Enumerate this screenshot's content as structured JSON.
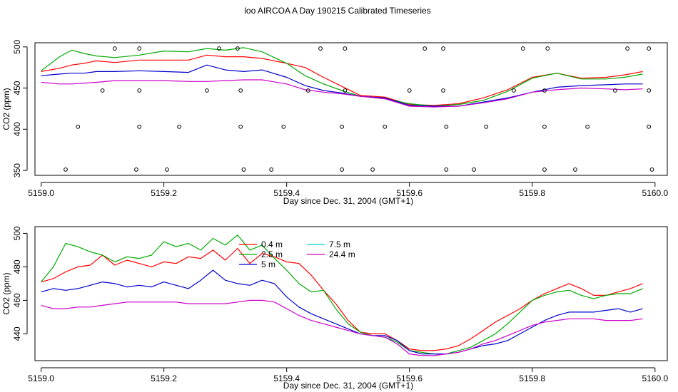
{
  "title": "loo AIRCOA A  Day 190215  Calibrated Timeseries",
  "chart_data": [
    {
      "type": "line",
      "panel": "top",
      "xlabel": "Day since Dec. 31, 2004 (GMT+1)",
      "ylabel": "CO2 (ppm)",
      "xlim": [
        5158.99,
        5160.02
      ],
      "ylim": [
        344,
        505
      ],
      "x_ticks": [
        5159.0,
        5159.2,
        5159.4,
        5159.6,
        5159.8,
        5160.0
      ],
      "x_tick_labels": [
        "5159.0",
        "5159.2",
        "5159.4",
        "5159.6",
        "5159.8",
        "5160.0"
      ],
      "y_ticks": [
        350,
        400,
        450,
        500
      ],
      "y_tick_labels": [
        "350",
        "400",
        "450",
        "500"
      ],
      "series": [
        {
          "key": "s04",
          "color": "#ff0000",
          "x": [
            5159.0,
            5159.03,
            5159.05,
            5159.07,
            5159.09,
            5159.12,
            5159.16,
            5159.2,
            5159.24,
            5159.27,
            5159.3,
            5159.33,
            5159.36,
            5159.4,
            5159.43,
            5159.46,
            5159.49,
            5159.52,
            5159.56,
            5159.6,
            5159.64,
            5159.68,
            5159.72,
            5159.76,
            5159.8,
            5159.84,
            5159.88,
            5159.92,
            5159.95,
            5159.98
          ],
          "y": [
            470,
            474,
            478,
            480,
            483,
            481,
            484,
            484,
            484,
            490,
            488,
            488,
            486,
            480,
            475,
            463,
            452,
            441,
            439,
            430,
            429,
            431,
            438,
            448,
            463,
            468,
            462,
            463,
            466,
            470
          ]
        },
        {
          "key": "s25",
          "color": "#00aa00",
          "x": [
            5159.0,
            5159.03,
            5159.05,
            5159.07,
            5159.09,
            5159.12,
            5159.16,
            5159.2,
            5159.24,
            5159.27,
            5159.3,
            5159.33,
            5159.36,
            5159.4,
            5159.43,
            5159.46,
            5159.49,
            5159.52,
            5159.56,
            5159.6,
            5159.64,
            5159.68,
            5159.72,
            5159.76,
            5159.8,
            5159.84,
            5159.88,
            5159.92,
            5159.95,
            5159.98
          ],
          "y": [
            471,
            488,
            496,
            492,
            489,
            487,
            490,
            495,
            494,
            498,
            496,
            499,
            494,
            480,
            465,
            455,
            447,
            440,
            437,
            431,
            428,
            430,
            435,
            446,
            462,
            468,
            461,
            461,
            463,
            467
          ]
        },
        {
          "key": "s5",
          "color": "#0000cc",
          "x": [
            5159.0,
            5159.03,
            5159.05,
            5159.07,
            5159.09,
            5159.12,
            5159.16,
            5159.2,
            5159.24,
            5159.27,
            5159.3,
            5159.33,
            5159.36,
            5159.4,
            5159.43,
            5159.46,
            5159.49,
            5159.52,
            5159.56,
            5159.6,
            5159.64,
            5159.68,
            5159.72,
            5159.76,
            5159.8,
            5159.84,
            5159.88,
            5159.92,
            5159.95,
            5159.98
          ],
          "y": [
            465,
            467,
            468,
            468,
            470,
            470,
            471,
            470,
            469,
            478,
            472,
            470,
            472,
            463,
            453,
            447,
            444,
            440,
            438,
            429,
            428,
            428,
            433,
            438,
            445,
            451,
            453,
            454,
            455,
            455
          ]
        },
        {
          "key": "s75",
          "color": "#00cccc",
          "x": [],
          "y": []
        },
        {
          "key": "s244",
          "color": "#cc00cc",
          "x": [
            5159.0,
            5159.03,
            5159.05,
            5159.07,
            5159.09,
            5159.12,
            5159.16,
            5159.2,
            5159.24,
            5159.27,
            5159.3,
            5159.33,
            5159.36,
            5159.4,
            5159.43,
            5159.46,
            5159.49,
            5159.52,
            5159.56,
            5159.6,
            5159.64,
            5159.68,
            5159.72,
            5159.76,
            5159.8,
            5159.84,
            5159.88,
            5159.92,
            5159.95,
            5159.98
          ],
          "y": [
            457,
            455,
            455,
            456,
            457,
            459,
            459,
            459,
            458,
            458,
            459,
            460,
            460,
            455,
            448,
            445,
            443,
            440,
            437,
            428,
            427,
            428,
            432,
            437,
            445,
            448,
            450,
            449,
            448,
            449
          ]
        }
      ],
      "points": [
        {
          "x": 5159.04,
          "y": 351
        },
        {
          "x": 5159.06,
          "y": 403
        },
        {
          "x": 5159.1,
          "y": 447
        },
        {
          "x": 5159.12,
          "y": 498
        },
        {
          "x": 5159.155,
          "y": 351
        },
        {
          "x": 5159.16,
          "y": 403
        },
        {
          "x": 5159.16,
          "y": 447
        },
        {
          "x": 5159.16,
          "y": 498
        },
        {
          "x": 5159.205,
          "y": 351
        },
        {
          "x": 5159.225,
          "y": 403
        },
        {
          "x": 5159.27,
          "y": 447
        },
        {
          "x": 5159.29,
          "y": 498
        },
        {
          "x": 5159.32,
          "y": 498
        },
        {
          "x": 5159.325,
          "y": 447
        },
        {
          "x": 5159.325,
          "y": 403
        },
        {
          "x": 5159.33,
          "y": 351
        },
        {
          "x": 5159.375,
          "y": 351
        },
        {
          "x": 5159.395,
          "y": 403
        },
        {
          "x": 5159.435,
          "y": 447
        },
        {
          "x": 5159.455,
          "y": 498
        },
        {
          "x": 5159.49,
          "y": 351
        },
        {
          "x": 5159.49,
          "y": 403
        },
        {
          "x": 5159.495,
          "y": 447
        },
        {
          "x": 5159.495,
          "y": 498
        },
        {
          "x": 5159.54,
          "y": 351
        },
        {
          "x": 5159.56,
          "y": 403
        },
        {
          "x": 5159.6,
          "y": 447
        },
        {
          "x": 5159.625,
          "y": 498
        },
        {
          "x": 5159.655,
          "y": 498
        },
        {
          "x": 5159.655,
          "y": 447
        },
        {
          "x": 5159.66,
          "y": 403
        },
        {
          "x": 5159.66,
          "y": 351
        },
        {
          "x": 5159.705,
          "y": 351
        },
        {
          "x": 5159.725,
          "y": 403
        },
        {
          "x": 5159.77,
          "y": 447
        },
        {
          "x": 5159.785,
          "y": 498
        },
        {
          "x": 5159.82,
          "y": 351
        },
        {
          "x": 5159.82,
          "y": 403
        },
        {
          "x": 5159.82,
          "y": 447
        },
        {
          "x": 5159.825,
          "y": 498
        },
        {
          "x": 5159.87,
          "y": 351
        },
        {
          "x": 5159.89,
          "y": 403
        },
        {
          "x": 5159.935,
          "y": 447
        },
        {
          "x": 5159.955,
          "y": 498
        },
        {
          "x": 5159.99,
          "y": 498
        },
        {
          "x": 5159.99,
          "y": 447
        },
        {
          "x": 5159.99,
          "y": 403
        },
        {
          "x": 5159.995,
          "y": 351
        }
      ]
    },
    {
      "type": "line",
      "panel": "bottom",
      "xlabel": "Day since Dec. 31, 2004 (GMT+1)",
      "ylabel": "CO2 (ppm)",
      "xlim": [
        5158.99,
        5160.02
      ],
      "ylim": [
        424,
        504
      ],
      "x_ticks": [
        5159.0,
        5159.2,
        5159.4,
        5159.6,
        5159.8,
        5160.0
      ],
      "x_tick_labels": [
        "5159.0",
        "5159.2",
        "5159.4",
        "5159.6",
        "5159.8",
        "5160.0"
      ],
      "y_ticks": [
        440,
        460,
        480,
        500
      ],
      "y_tick_labels": [
        "440",
        "460",
        "480",
        "500"
      ],
      "legend_position": "top-center",
      "series": [
        {
          "key": "s04",
          "name": "0.4 m",
          "color": "#ff0000",
          "x": [
            5159.0,
            5159.02,
            5159.04,
            5159.06,
            5159.08,
            5159.1,
            5159.12,
            5159.14,
            5159.16,
            5159.18,
            5159.2,
            5159.22,
            5159.24,
            5159.26,
            5159.28,
            5159.3,
            5159.32,
            5159.34,
            5159.36,
            5159.38,
            5159.4,
            5159.42,
            5159.44,
            5159.46,
            5159.48,
            5159.5,
            5159.52,
            5159.54,
            5159.56,
            5159.58,
            5159.6,
            5159.62,
            5159.64,
            5159.66,
            5159.68,
            5159.7,
            5159.72,
            5159.74,
            5159.76,
            5159.78,
            5159.8,
            5159.82,
            5159.84,
            5159.86,
            5159.88,
            5159.9,
            5159.92,
            5159.94,
            5159.96,
            5159.98
          ],
          "y": [
            471,
            473,
            477,
            480,
            481,
            487,
            481,
            484,
            482,
            480,
            483,
            482,
            486,
            485,
            490,
            484,
            491,
            482,
            488,
            486,
            483,
            482,
            475,
            466,
            458,
            448,
            441,
            440,
            440,
            436,
            431,
            430,
            430,
            431,
            433,
            437,
            442,
            447,
            451,
            455,
            460,
            464,
            467,
            470,
            467,
            463,
            463,
            465,
            467,
            470
          ]
        },
        {
          "key": "s25",
          "name": "2.5 m",
          "color": "#00aa00",
          "x": [
            5159.0,
            5159.02,
            5159.04,
            5159.06,
            5159.08,
            5159.1,
            5159.12,
            5159.14,
            5159.16,
            5159.18,
            5159.2,
            5159.22,
            5159.24,
            5159.26,
            5159.28,
            5159.3,
            5159.32,
            5159.34,
            5159.36,
            5159.38,
            5159.4,
            5159.42,
            5159.44,
            5159.46,
            5159.48,
            5159.5,
            5159.52,
            5159.54,
            5159.56,
            5159.58,
            5159.6,
            5159.62,
            5159.64,
            5159.66,
            5159.68,
            5159.7,
            5159.72,
            5159.74,
            5159.76,
            5159.8,
            5159.82,
            5159.84,
            5159.86,
            5159.88,
            5159.9,
            5159.92,
            5159.94,
            5159.96,
            5159.98
          ],
          "y": [
            471,
            480,
            494,
            492,
            489,
            487,
            483,
            486,
            485,
            487,
            495,
            492,
            494,
            490,
            497,
            493,
            499,
            490,
            493,
            485,
            478,
            470,
            465,
            466,
            455,
            446,
            441,
            439,
            438,
            435,
            430,
            429,
            428,
            428,
            430,
            432,
            436,
            440,
            446,
            460,
            463,
            465,
            466,
            463,
            461,
            463,
            464,
            464,
            467
          ]
        },
        {
          "key": "s5",
          "name": "5 m",
          "color": "#0000cc",
          "x": [
            5159.0,
            5159.02,
            5159.04,
            5159.06,
            5159.08,
            5159.1,
            5159.12,
            5159.14,
            5159.16,
            5159.18,
            5159.2,
            5159.22,
            5159.24,
            5159.26,
            5159.28,
            5159.3,
            5159.32,
            5159.34,
            5159.36,
            5159.38,
            5159.4,
            5159.42,
            5159.44,
            5159.46,
            5159.48,
            5159.5,
            5159.52,
            5159.54,
            5159.56,
            5159.58,
            5159.6,
            5159.62,
            5159.64,
            5159.66,
            5159.68,
            5159.7,
            5159.72,
            5159.74,
            5159.76,
            5159.78,
            5159.8,
            5159.82,
            5159.84,
            5159.86,
            5159.88,
            5159.9,
            5159.92,
            5159.94,
            5159.96,
            5159.98
          ],
          "y": [
            465,
            467,
            466,
            467,
            469,
            471,
            470,
            468,
            469,
            468,
            471,
            469,
            467,
            472,
            478,
            472,
            470,
            469,
            472,
            470,
            462,
            456,
            452,
            449,
            446,
            443,
            440,
            439,
            439,
            436,
            430,
            428,
            428,
            428,
            429,
            431,
            433,
            434,
            436,
            440,
            444,
            448,
            451,
            453,
            453,
            453,
            454,
            455,
            453,
            455
          ]
        },
        {
          "key": "s75",
          "name": "7.5 m",
          "color": "#00cccc",
          "x": [],
          "y": []
        },
        {
          "key": "s244",
          "name": "24.4 m",
          "color": "#cc00cc",
          "x": [
            5159.0,
            5159.02,
            5159.04,
            5159.06,
            5159.08,
            5159.1,
            5159.12,
            5159.14,
            5159.16,
            5159.18,
            5159.2,
            5159.22,
            5159.24,
            5159.26,
            5159.28,
            5159.3,
            5159.32,
            5159.34,
            5159.36,
            5159.38,
            5159.4,
            5159.42,
            5159.44,
            5159.46,
            5159.48,
            5159.5,
            5159.52,
            5159.54,
            5159.56,
            5159.58,
            5159.6,
            5159.62,
            5159.64,
            5159.66,
            5159.68,
            5159.7,
            5159.72,
            5159.74,
            5159.76,
            5159.78,
            5159.8,
            5159.82,
            5159.84,
            5159.86,
            5159.88,
            5159.9,
            5159.92,
            5159.94,
            5159.96,
            5159.98
          ],
          "y": [
            457,
            455,
            455,
            456,
            456,
            457,
            458,
            459,
            459,
            459,
            459,
            459,
            458,
            458,
            458,
            458,
            459,
            460,
            460,
            459,
            455,
            451,
            448,
            446,
            444,
            442,
            440,
            439,
            438,
            434,
            428,
            427,
            427,
            428,
            429,
            431,
            434,
            436,
            439,
            442,
            445,
            447,
            448,
            449,
            449,
            449,
            448,
            448,
            448,
            449
          ]
        }
      ]
    }
  ]
}
